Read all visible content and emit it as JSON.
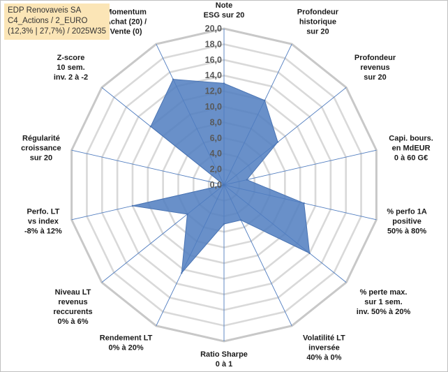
{
  "title_lines": [
    "EDP Renovaveis SA",
    "C4_Actions / 2_EURO",
    "(12,3% | 27,7%) / 2025W35"
  ],
  "chart_data": {
    "type": "radar",
    "title": "EDP Renovaveis SA — C4_Actions / 2_EURO — (12,3% | 27,7%) / 2025W35",
    "rlim": [
      0,
      20
    ],
    "ticks": [
      "0,0",
      "2,0",
      "4,0",
      "6,0",
      "8,0",
      "10,0",
      "12,0",
      "14,0",
      "16,0",
      "18,0",
      "20,0"
    ],
    "grid": true,
    "fill_color": "#4f7cbf",
    "edge_color": "#4a74b3",
    "grid_color": "#d9d9d9",
    "spoke_color": "#4f7cbf",
    "categories": [
      {
        "lines": [
          "Note",
          "ESG sur 20"
        ],
        "value": 13
      },
      {
        "lines": [
          "Profondeur",
          "historique",
          "sur 20"
        ],
        "value": 12
      },
      {
        "lines": [
          "Profondeur",
          "revenus",
          "sur 20"
        ],
        "value": 8.8
      },
      {
        "lines": [
          "Capi. bours.",
          "en MdEUR",
          "0 à 60 G€"
        ],
        "value": 3
      },
      {
        "lines": [
          "% perfo 1A",
          "positive",
          "50% à 80%"
        ],
        "value": 10.5
      },
      {
        "lines": [
          "% perte max.",
          "sur 1 sem.",
          "inv. 50% à 20%"
        ],
        "value": 14
      },
      {
        "lines": [
          "Volatilité LT",
          "inversée",
          "40% à 0%"
        ],
        "value": 5
      },
      {
        "lines": [
          "Ratio Sharpe",
          "0 à 1"
        ],
        "value": 5
      },
      {
        "lines": [
          "Rendement LT",
          "0% à 20%"
        ],
        "value": 12.5
      },
      {
        "lines": [
          "Niveau LT",
          "revenus",
          "reccurents",
          "0% à 6%"
        ],
        "value": 6
      },
      {
        "lines": [
          "Perfo. LT",
          "vs index",
          "-8% à 12%"
        ],
        "value": 12
      },
      {
        "lines": [
          "Régularité",
          "croissance",
          "sur 20"
        ],
        "value": 0
      },
      {
        "lines": [
          "Z-score",
          "10 sem.",
          "inv. 2 à -2"
        ],
        "value": 12
      },
      {
        "lines": [
          "Momentum",
          "Achat (20) /",
          "Vente (0)"
        ],
        "value": 15
      }
    ]
  }
}
